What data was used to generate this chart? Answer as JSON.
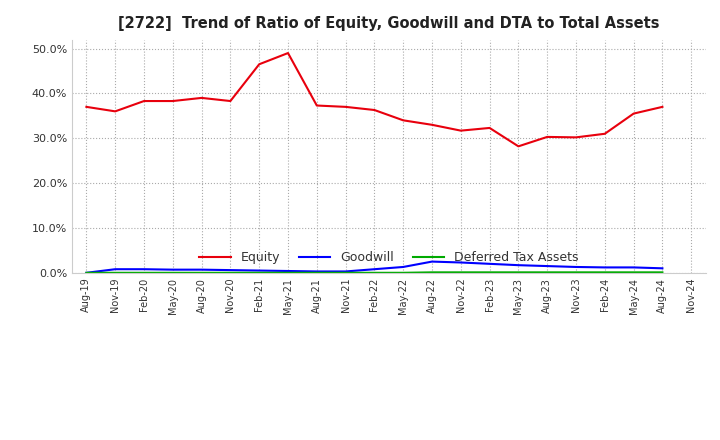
{
  "title": "[2722]  Trend of Ratio of Equity, Goodwill and DTA to Total Assets",
  "x_labels": [
    "Aug-19",
    "Nov-19",
    "Feb-20",
    "May-20",
    "Aug-20",
    "Nov-20",
    "Feb-21",
    "May-21",
    "Aug-21",
    "Nov-21",
    "Feb-22",
    "May-22",
    "Aug-22",
    "Nov-22",
    "Feb-23",
    "May-23",
    "Aug-23",
    "Nov-23",
    "Feb-24",
    "May-24",
    "Aug-24",
    "Nov-24"
  ],
  "equity": [
    0.37,
    0.36,
    0.383,
    0.383,
    0.39,
    0.383,
    0.465,
    0.49,
    0.373,
    0.37,
    0.363,
    0.34,
    0.33,
    0.317,
    0.323,
    0.282,
    0.303,
    0.302,
    0.31,
    0.355,
    0.37,
    null
  ],
  "goodwill": [
    0.0,
    0.008,
    0.008,
    0.007,
    0.007,
    0.006,
    0.005,
    0.004,
    0.003,
    0.003,
    0.008,
    0.013,
    0.025,
    0.023,
    0.02,
    0.017,
    0.015,
    0.013,
    0.012,
    0.012,
    0.01,
    null
  ],
  "dta": [
    0.0,
    0.0,
    0.0,
    0.0,
    0.0,
    0.0,
    0.0,
    0.0,
    0.0,
    0.0,
    0.0,
    0.0,
    0.001,
    0.001,
    0.001,
    0.001,
    0.001,
    0.001,
    0.001,
    0.001,
    0.001,
    null
  ],
  "equity_color": "#e8000d",
  "goodwill_color": "#0000ff",
  "dta_color": "#00aa00",
  "ylim": [
    0.0,
    0.52
  ],
  "yticks": [
    0.0,
    0.1,
    0.2,
    0.3,
    0.4,
    0.5
  ],
  "background_color": "#ffffff",
  "grid_color": "#aaaaaa",
  "legend_labels": [
    "Equity",
    "Goodwill",
    "Deferred Tax Assets"
  ]
}
